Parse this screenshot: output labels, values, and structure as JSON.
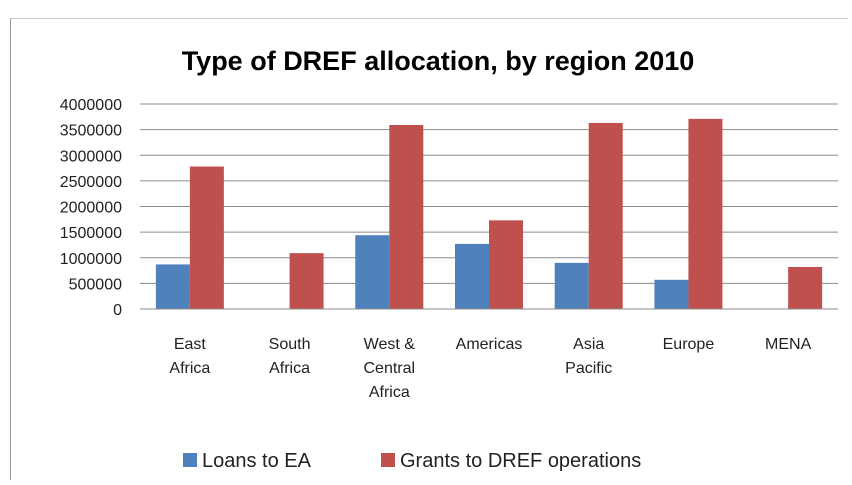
{
  "chart_data": {
    "type": "bar",
    "title": "Type of DREF allocation, by region 2010",
    "xlabel": "",
    "ylabel": "",
    "ylim": [
      0,
      4000000
    ],
    "yticks": [
      "0",
      "500000",
      "1000000",
      "1500000",
      "2000000",
      "2500000",
      "3000000",
      "3500000",
      "4000000"
    ],
    "ytick_values": [
      0,
      500000,
      1000000,
      1500000,
      2000000,
      2500000,
      3000000,
      3500000,
      4000000
    ],
    "grid": true,
    "legend_position": "bottom",
    "categories": [
      [
        "East",
        "Africa"
      ],
      [
        "South",
        "Africa"
      ],
      [
        "West &",
        "Central",
        "Africa"
      ],
      [
        "Americas"
      ],
      [
        "Asia",
        "Pacific"
      ],
      [
        "Europe"
      ],
      [
        "MENA"
      ]
    ],
    "series": [
      {
        "name": "Loans to EA",
        "color": "#4f81bd",
        "values": [
          870000,
          0,
          1440000,
          1270000,
          900000,
          570000,
          0
        ]
      },
      {
        "name": "Grants to DREF operations",
        "color": "#c0504d",
        "values": [
          2780000,
          1090000,
          3590000,
          1730000,
          3630000,
          3710000,
          820000
        ]
      }
    ]
  }
}
